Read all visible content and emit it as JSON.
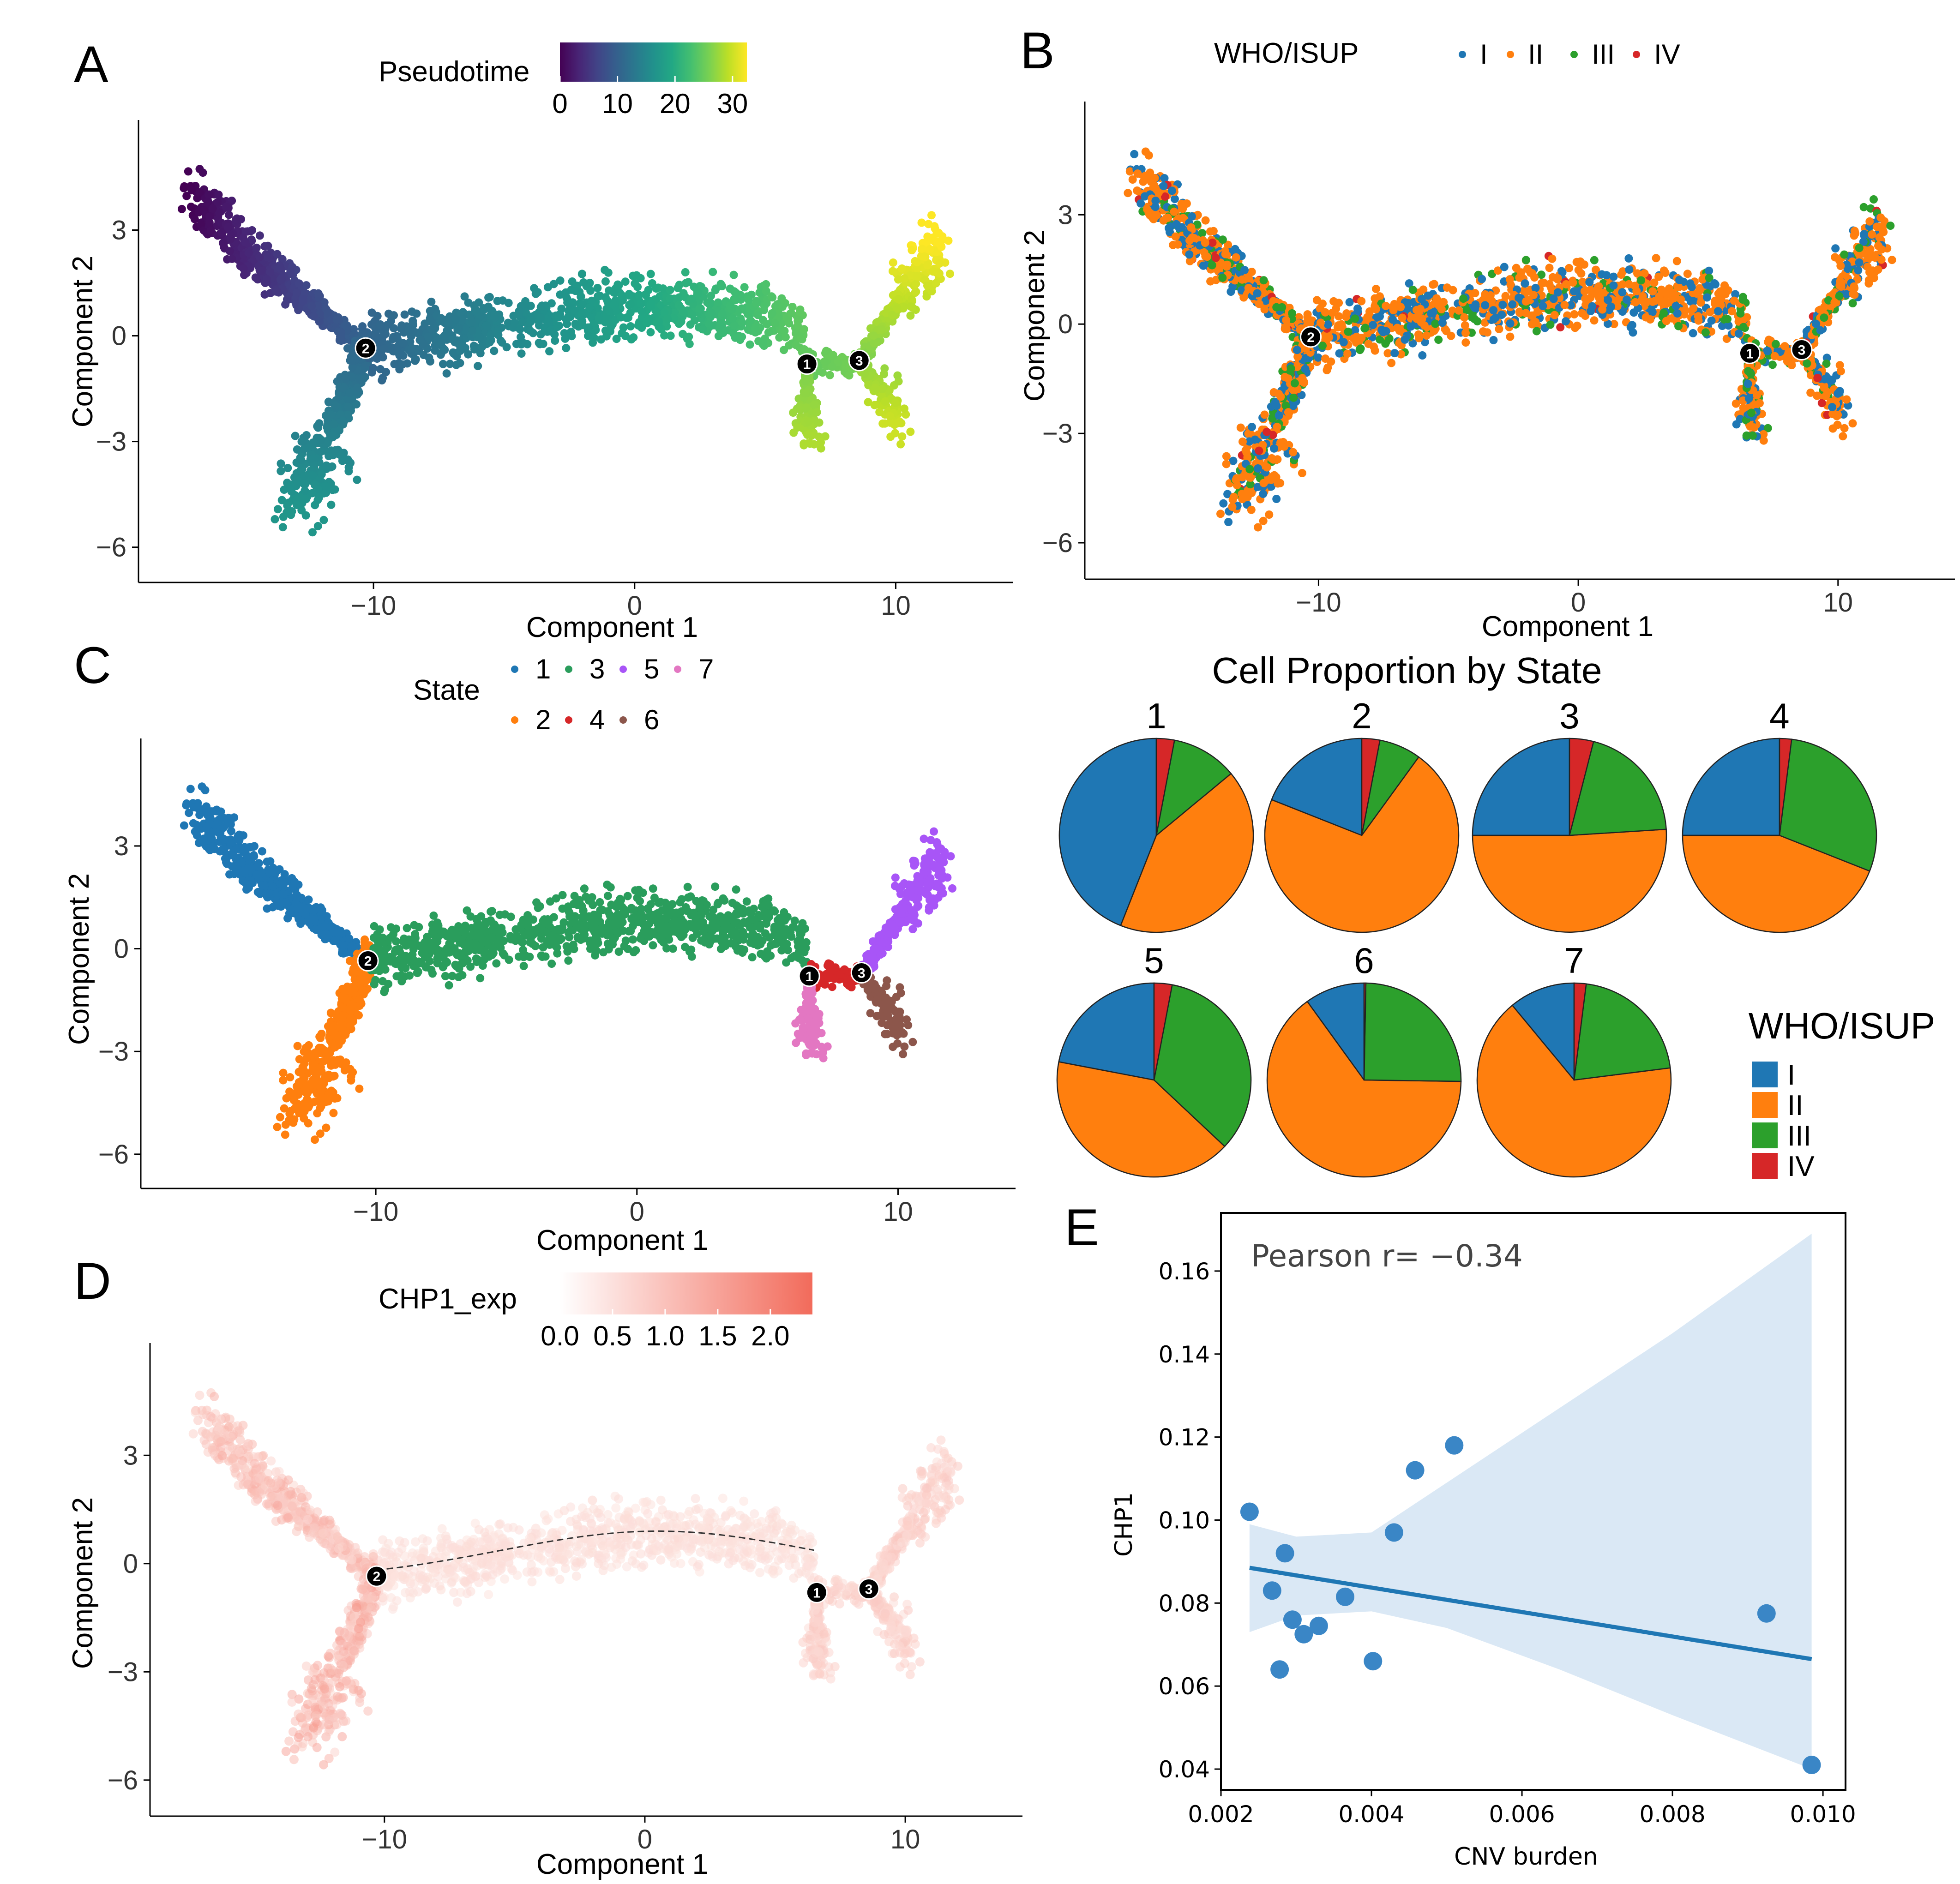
{
  "colors": {
    "grade_I": "#1f77b4",
    "grade_II": "#ff7f0e",
    "grade_III": "#2ca02c",
    "grade_IV": "#d62728",
    "state_1": "#1f77b4",
    "state_2": "#ff7f0e",
    "state_3": "#2a9d5c",
    "state_4": "#d62728",
    "state_5": "#a855f7",
    "state_6": "#8c564b",
    "state_7": "#e377c2",
    "chp1_low": "#fde8e4",
    "chp1_high": "#f26b5b",
    "scatter_blue": "#3a86c6",
    "band_fill": "#d6e6f4",
    "branch_node": "#000000"
  },
  "chart_data": [
    {
      "id": "A",
      "type": "scatter",
      "panel_label": "A",
      "xlabel": "Component 1",
      "ylabel": "Component 2",
      "xlim": [
        -19,
        14.5
      ],
      "ylim": [
        -7,
        5.6
      ],
      "x_ticks": [
        -10,
        0,
        10
      ],
      "x_tick_labels": [
        "−10",
        "0",
        "10"
      ],
      "y_ticks": [
        3,
        0,
        -3,
        -6
      ],
      "y_tick_labels": [
        "3",
        "0",
        "−3",
        "−6"
      ],
      "color_by": "pseudotime",
      "legend": {
        "title": "Pseudotime",
        "type": "colorbar",
        "ticks": [
          0,
          10,
          20,
          30
        ],
        "range": [
          0,
          32.5
        ]
      },
      "branch_nodes": [
        {
          "label": "2",
          "x": -10.3,
          "y": -0.35
        },
        {
          "label": "1",
          "x": 6.6,
          "y": -0.8
        },
        {
          "label": "3",
          "x": 8.6,
          "y": -0.7
        }
      ]
    },
    {
      "id": "B",
      "type": "scatter",
      "panel_label": "B",
      "xlabel": "Component 1",
      "ylabel": "Component 2",
      "xlim": [
        -19,
        14.5
      ],
      "ylim": [
        -7,
        5.6
      ],
      "x_ticks": [
        -10,
        0,
        10
      ],
      "x_tick_labels": [
        "−10",
        "0",
        "10"
      ],
      "y_ticks": [
        3,
        0,
        -3,
        -6
      ],
      "y_tick_labels": [
        "3",
        "0",
        "−3",
        "−6"
      ],
      "color_by": "WHO/ISUP",
      "legend": {
        "title": "WHO/ISUP",
        "entries": [
          "I",
          "II",
          "III",
          "IV"
        ]
      },
      "branch_nodes": [
        {
          "label": "2",
          "x": -10.3,
          "y": -0.35
        },
        {
          "label": "1",
          "x": 6.6,
          "y": -0.8
        },
        {
          "label": "3",
          "x": 8.6,
          "y": -0.7
        }
      ]
    },
    {
      "id": "C",
      "type": "scatter",
      "panel_label": "C",
      "xlabel": "Component 1",
      "ylabel": "Component 2",
      "xlim": [
        -19,
        14.5
      ],
      "ylim": [
        -7,
        5.6
      ],
      "x_ticks": [
        -10,
        0,
        10
      ],
      "x_tick_labels": [
        "−10",
        "0",
        "10"
      ],
      "y_ticks": [
        3,
        0,
        -3,
        -6
      ],
      "y_tick_labels": [
        "3",
        "0",
        "−3",
        "−6"
      ],
      "color_by": "State",
      "legend": {
        "title": "State",
        "row1": [
          "1",
          "3",
          "5",
          "7"
        ],
        "row2": [
          "2",
          "4",
          "6"
        ]
      },
      "branch_nodes": [
        {
          "label": "2",
          "x": -10.3,
          "y": -0.35
        },
        {
          "label": "1",
          "x": 6.6,
          "y": -0.8
        },
        {
          "label": "3",
          "x": 8.6,
          "y": -0.7
        }
      ]
    },
    {
      "id": "D",
      "type": "scatter",
      "panel_label": "D",
      "xlabel": "Component 1",
      "ylabel": "Component 2",
      "xlim": [
        -19,
        14.5
      ],
      "ylim": [
        -7,
        5.6
      ],
      "x_ticks": [
        -10,
        0,
        10
      ],
      "x_tick_labels": [
        "−10",
        "0",
        "10"
      ],
      "y_ticks": [
        3,
        0,
        -3,
        -6
      ],
      "y_tick_labels": [
        "3",
        "0",
        "−3",
        "−6"
      ],
      "color_by": "CHP1_exp",
      "legend": {
        "title": "CHP1_exp",
        "type": "colorbar",
        "ticks": [
          0.0,
          0.5,
          1.0,
          1.5,
          2.0
        ],
        "tick_labels": [
          "0.0",
          "0.5",
          "1.0",
          "1.5",
          "2.0"
        ],
        "range": [
          0,
          2.4
        ]
      },
      "branch_nodes": [
        {
          "label": "2",
          "x": -10.3,
          "y": -0.35
        },
        {
          "label": "1",
          "x": 6.6,
          "y": -0.8
        },
        {
          "label": "3",
          "x": 8.6,
          "y": -0.7
        }
      ]
    },
    {
      "id": "pies",
      "type": "pie",
      "title": "Cell Proportion by State",
      "categories": [
        "I",
        "II",
        "III",
        "IV"
      ],
      "legend_title": "WHO/ISUP",
      "pies": [
        {
          "label": "1",
          "values": [
            44,
            42,
            11,
            3
          ]
        },
        {
          "label": "2",
          "values": [
            19,
            71,
            7,
            3
          ]
        },
        {
          "label": "3",
          "values": [
            25,
            51,
            20,
            4
          ]
        },
        {
          "label": "4",
          "values": [
            25,
            44,
            29,
            2
          ]
        },
        {
          "label": "5",
          "values": [
            22,
            41,
            34,
            3
          ]
        },
        {
          "label": "6",
          "values": [
            10,
            65,
            25,
            0.3
          ]
        },
        {
          "label": "7",
          "values": [
            11,
            66,
            21,
            2
          ]
        }
      ]
    },
    {
      "id": "E",
      "type": "scatter",
      "panel_label": "E",
      "xlabel": "CNV burden",
      "ylabel": "CHP1",
      "annotation": "Pearson r= −0.34",
      "xlim": [
        0.002,
        0.0103
      ],
      "ylim": [
        0.035,
        0.174
      ],
      "x_ticks": [
        0.002,
        0.004,
        0.006,
        0.008,
        0.01
      ],
      "x_tick_labels": [
        "0.002",
        "0.004",
        "0.006",
        "0.008",
        "0.010"
      ],
      "y_ticks": [
        0.04,
        0.06,
        0.08,
        0.1,
        0.12,
        0.14,
        0.16
      ],
      "y_tick_labels": [
        "0.04",
        "0.06",
        "0.08",
        "0.10",
        "0.12",
        "0.14",
        "0.16"
      ],
      "points": [
        {
          "x": 0.00238,
          "y": 0.102
        },
        {
          "x": 0.00268,
          "y": 0.083
        },
        {
          "x": 0.00278,
          "y": 0.064
        },
        {
          "x": 0.00285,
          "y": 0.092
        },
        {
          "x": 0.00295,
          "y": 0.076
        },
        {
          "x": 0.0031,
          "y": 0.0725
        },
        {
          "x": 0.0033,
          "y": 0.0745
        },
        {
          "x": 0.00365,
          "y": 0.0815
        },
        {
          "x": 0.00402,
          "y": 0.066
        },
        {
          "x": 0.0043,
          "y": 0.097
        },
        {
          "x": 0.00458,
          "y": 0.112
        },
        {
          "x": 0.0051,
          "y": 0.118
        },
        {
          "x": 0.00925,
          "y": 0.0775
        },
        {
          "x": 0.00985,
          "y": 0.041
        }
      ],
      "regression": {
        "x": [
          0.00238,
          0.00985
        ],
        "y": [
          0.0885,
          0.0665
        ]
      },
      "ci_upper": [
        [
          0.00238,
          0.099
        ],
        [
          0.003,
          0.096
        ],
        [
          0.004,
          0.097
        ],
        [
          0.0045,
          0.103
        ],
        [
          0.006,
          0.121
        ],
        [
          0.008,
          0.145
        ],
        [
          0.00985,
          0.169
        ]
      ],
      "ci_lower": [
        [
          0.00238,
          0.073
        ],
        [
          0.003,
          0.077
        ],
        [
          0.004,
          0.078
        ],
        [
          0.005,
          0.074
        ],
        [
          0.0065,
          0.064
        ],
        [
          0.008,
          0.053
        ],
        [
          0.00985,
          0.04
        ]
      ]
    }
  ]
}
